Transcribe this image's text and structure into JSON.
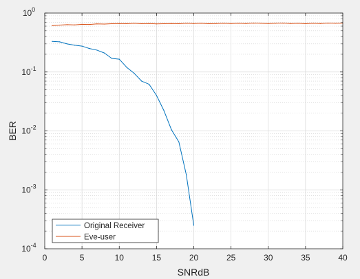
{
  "chart_data": {
    "type": "line",
    "title": "",
    "xlabel": "SNRdB",
    "ylabel": "BER",
    "xlim": [
      0,
      40
    ],
    "ylim": [
      0.0001,
      1
    ],
    "yscale": "log",
    "grid": true,
    "minor_grid": true,
    "legend_position": "bottom-left",
    "x_ticks": [
      "0",
      "5",
      "10",
      "15",
      "20",
      "25",
      "30",
      "35",
      "40"
    ],
    "x_tick_values": [
      0,
      5,
      10,
      15,
      20,
      25,
      30,
      35,
      40
    ],
    "y_tick_values": [
      0.0001,
      0.001,
      0.01,
      0.1,
      1
    ],
    "y_tick_base": "10",
    "y_tick_exponents": [
      "-4",
      "-3",
      "-2",
      "-1",
      "0"
    ],
    "series": [
      {
        "name": "Original Receiver",
        "color": "#0072bd",
        "x": [
          1,
          2,
          3,
          4,
          5,
          6,
          7,
          8,
          9,
          10,
          11,
          12,
          13,
          14,
          15,
          16,
          17,
          18,
          19,
          20
        ],
        "y": [
          0.33,
          0.325,
          0.3,
          0.285,
          0.275,
          0.25,
          0.235,
          0.21,
          0.17,
          0.165,
          0.12,
          0.095,
          0.07,
          0.062,
          0.04,
          0.022,
          0.0105,
          0.0065,
          0.0018,
          0.00025
        ]
      },
      {
        "name": "Eve-user",
        "color": "#d95319",
        "x": [
          1,
          2,
          3,
          4,
          5,
          6,
          7,
          8,
          9,
          10,
          11,
          12,
          13,
          14,
          15,
          16,
          17,
          18,
          19,
          20,
          21,
          22,
          23,
          24,
          25,
          26,
          27,
          28,
          29,
          30,
          31,
          32,
          33,
          34,
          35,
          36,
          37,
          38,
          39,
          40
        ],
        "y": [
          0.61,
          0.625,
          0.635,
          0.63,
          0.645,
          0.64,
          0.655,
          0.65,
          0.66,
          0.665,
          0.66,
          0.67,
          0.66,
          0.665,
          0.655,
          0.66,
          0.665,
          0.66,
          0.67,
          0.665,
          0.67,
          0.66,
          0.665,
          0.67,
          0.665,
          0.67,
          0.665,
          0.675,
          0.67,
          0.665,
          0.67,
          0.675,
          0.665,
          0.67,
          0.66,
          0.67,
          0.665,
          0.675,
          0.67,
          0.672
        ]
      }
    ]
  }
}
